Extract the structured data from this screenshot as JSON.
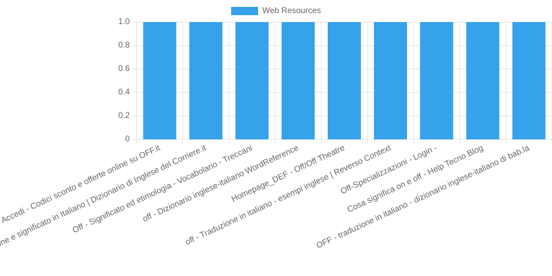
{
  "chart_data": {
    "type": "bar",
    "categories": [
      "Accedi - Codici sconto e offerte online su OFF.it",
      "one e significato in Italiano | Dizionario di Inglese del Corriere.it",
      "Off - Significato ed etimologia - Vocabolario - Treccani",
      "off - Dizionario inglese-italiano WordReference",
      "Homepage_DEF - Off/Off Theatre",
      "off - Traduzione in italiano - esempi inglese | Reverso Context",
      "Off-Specializzazioni - Login -",
      "Cosa significa on e off - Help Tecno Blog",
      "OFF - traduzione in italiano - dizionario inglese-italiano di bab.la"
    ],
    "series": [
      {
        "name": "Web Resources",
        "color": "#36a2eb",
        "values": [
          1,
          1,
          1,
          1,
          1,
          1,
          1,
          1,
          1
        ]
      }
    ],
    "ylim": [
      0,
      1
    ],
    "yticks": [
      0,
      0.2,
      0.4,
      0.6,
      0.8,
      {
        "value": 1,
        "label": "1.0"
      }
    ],
    "grid": true
  }
}
